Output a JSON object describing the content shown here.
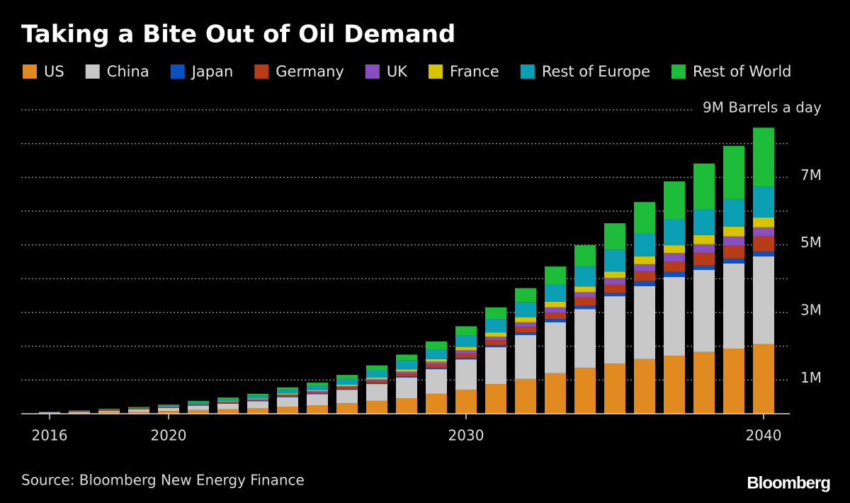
{
  "chart_data": {
    "type": "stacked_bar",
    "title": "Taking a Bite Out of Oil Demand",
    "source": "Source: Bloomberg New Energy Finance",
    "logo": "Bloomberg",
    "categories": [
      "2016",
      null,
      null,
      null,
      "2020",
      null,
      null,
      null,
      null,
      null,
      null,
      null,
      null,
      null,
      "2030",
      null,
      null,
      null,
      null,
      null,
      null,
      null,
      null,
      null,
      "2040"
    ],
    "ylim": [
      0,
      9
    ],
    "yticks": [
      {
        "value": 1,
        "label": "1M"
      },
      {
        "value": 2,
        "label": null
      },
      {
        "value": 3,
        "label": "3M"
      },
      {
        "value": 4,
        "label": null
      },
      {
        "value": 5,
        "label": "5M"
      },
      {
        "value": 6,
        "label": null
      },
      {
        "value": 7,
        "label": "7M"
      },
      {
        "value": 8,
        "label": null
      },
      {
        "value": 9,
        "label": "9M Barrels a day"
      }
    ],
    "grid": true,
    "series": [
      {
        "name": "US",
        "color": "#e08a1f",
        "values": [
          0.02,
          0.03,
          0.05,
          0.06,
          0.08,
          0.11,
          0.13,
          0.16,
          0.21,
          0.25,
          0.31,
          0.38,
          0.46,
          0.59,
          0.71,
          0.88,
          1.03,
          1.2,
          1.36,
          1.49,
          1.62,
          1.72,
          1.83,
          1.93,
          2.06
        ]
      },
      {
        "name": "China",
        "color": "#c8c8c8",
        "values": [
          0.02,
          0.03,
          0.04,
          0.07,
          0.09,
          0.13,
          0.17,
          0.21,
          0.28,
          0.33,
          0.4,
          0.5,
          0.61,
          0.73,
          0.9,
          1.09,
          1.3,
          1.51,
          1.74,
          1.99,
          2.16,
          2.33,
          2.43,
          2.52,
          2.6
        ]
      },
      {
        "name": "Japan",
        "color": "#0a52c2",
        "values": [
          0.01,
          0.01,
          0.01,
          0.01,
          0.01,
          0.01,
          0.01,
          0.01,
          0.02,
          0.02,
          0.02,
          0.03,
          0.04,
          0.04,
          0.04,
          0.06,
          0.08,
          0.1,
          0.1,
          0.1,
          0.15,
          0.15,
          0.13,
          0.15,
          0.15
        ]
      },
      {
        "name": "Germany",
        "color": "#b83c18",
        "values": [
          0,
          0.01,
          0.01,
          0.01,
          0.01,
          0.02,
          0.02,
          0.03,
          0.03,
          0.04,
          0.05,
          0.06,
          0.08,
          0.1,
          0.13,
          0.15,
          0.17,
          0.19,
          0.25,
          0.25,
          0.29,
          0.31,
          0.38,
          0.38,
          0.44
        ]
      },
      {
        "name": "UK",
        "color": "#8a4fbe",
        "values": [
          0,
          0,
          0.01,
          0.01,
          0.01,
          0.01,
          0.02,
          0.02,
          0.03,
          0.03,
          0.04,
          0.05,
          0.06,
          0.08,
          0.1,
          0.1,
          0.13,
          0.15,
          0.15,
          0.19,
          0.21,
          0.25,
          0.25,
          0.27,
          0.27
        ]
      },
      {
        "name": "France",
        "color": "#d8c300",
        "values": [
          0,
          0,
          0.01,
          0.01,
          0.01,
          0.01,
          0.02,
          0.02,
          0.03,
          0.03,
          0.04,
          0.05,
          0.06,
          0.08,
          0.1,
          0.13,
          0.15,
          0.17,
          0.17,
          0.19,
          0.23,
          0.23,
          0.27,
          0.29,
          0.29
        ]
      },
      {
        "name": "Rest of Europe",
        "color": "#0a9fb5",
        "values": [
          0.01,
          0.01,
          0.01,
          0.02,
          0.04,
          0.06,
          0.07,
          0.09,
          0.11,
          0.13,
          0.17,
          0.22,
          0.27,
          0.29,
          0.34,
          0.4,
          0.44,
          0.5,
          0.59,
          0.65,
          0.69,
          0.76,
          0.76,
          0.82,
          0.92
        ]
      },
      {
        "name": "Rest of World",
        "color": "#1dbd3a",
        "values": [
          0,
          0.01,
          0.01,
          0.01,
          0.02,
          0.03,
          0.04,
          0.05,
          0.07,
          0.09,
          0.12,
          0.14,
          0.17,
          0.23,
          0.27,
          0.34,
          0.42,
          0.54,
          0.63,
          0.78,
          0.92,
          1.13,
          1.36,
          1.57,
          1.74
        ]
      }
    ]
  }
}
